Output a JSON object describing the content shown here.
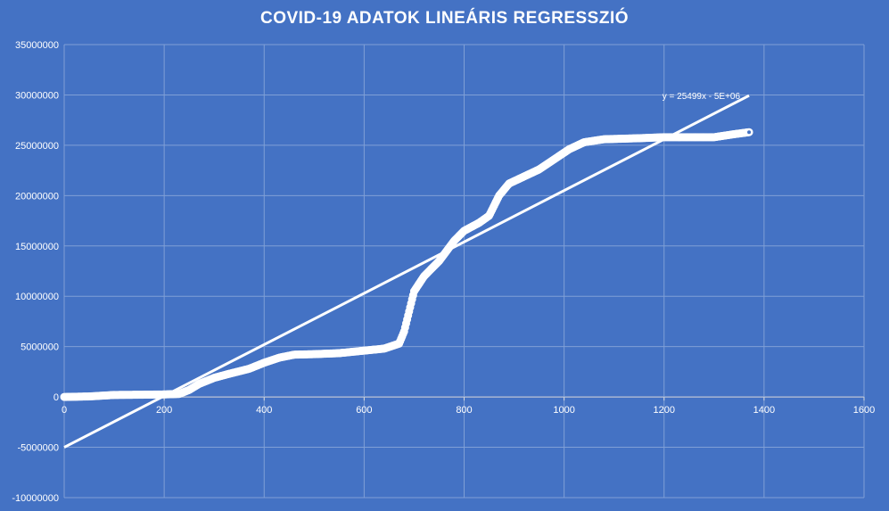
{
  "chart_data": {
    "type": "scatter",
    "title": "COVID-19 ADATOK LINEÁRIS REGRESSZIÓ",
    "xlim": [
      0,
      1600
    ],
    "ylim": [
      -10000000,
      35000000
    ],
    "x_ticks": [
      0,
      200,
      400,
      600,
      800,
      1000,
      1200,
      1400,
      1600
    ],
    "y_ticks": [
      -10000000,
      -5000000,
      0,
      5000000,
      10000000,
      15000000,
      20000000,
      25000000,
      30000000,
      35000000
    ],
    "grid": true,
    "legend": "none",
    "series": [
      {
        "values_xy": [
          [
            0,
            0
          ],
          [
            50,
            50000
          ],
          [
            100,
            200000
          ],
          [
            150,
            220000
          ],
          [
            200,
            250000
          ],
          [
            230,
            300000
          ],
          [
            250,
            700000
          ],
          [
            270,
            1300000
          ],
          [
            300,
            1900000
          ],
          [
            330,
            2300000
          ],
          [
            370,
            2800000
          ],
          [
            400,
            3400000
          ],
          [
            430,
            3900000
          ],
          [
            460,
            4200000
          ],
          [
            500,
            4250000
          ],
          [
            550,
            4350000
          ],
          [
            600,
            4600000
          ],
          [
            640,
            4800000
          ],
          [
            670,
            5300000
          ],
          [
            680,
            6500000
          ],
          [
            690,
            8500000
          ],
          [
            700,
            10500000
          ],
          [
            720,
            12000000
          ],
          [
            750,
            13500000
          ],
          [
            780,
            15500000
          ],
          [
            800,
            16500000
          ],
          [
            830,
            17300000
          ],
          [
            850,
            18000000
          ],
          [
            870,
            20000000
          ],
          [
            890,
            21200000
          ],
          [
            920,
            21900000
          ],
          [
            950,
            22600000
          ],
          [
            980,
            23600000
          ],
          [
            1010,
            24600000
          ],
          [
            1040,
            25300000
          ],
          [
            1080,
            25600000
          ],
          [
            1150,
            25700000
          ],
          [
            1200,
            25800000
          ],
          [
            1250,
            25800000
          ],
          [
            1300,
            25800000
          ],
          [
            1340,
            26100000
          ],
          [
            1370,
            26300000
          ]
        ]
      }
    ],
    "trendline": {
      "slope": 25499,
      "intercept": -5000000,
      "x_range": [
        0,
        1370
      ],
      "label": "y = 25499x - 5E+06"
    },
    "colors": {
      "background": "#4472C4",
      "grid": "#7F9FD6",
      "series": "#FFFFFF",
      "text": "#FFFFFF"
    }
  }
}
